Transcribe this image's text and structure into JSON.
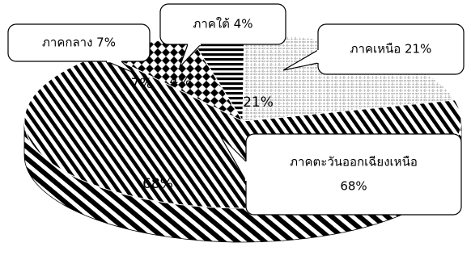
{
  "chart_data": {
    "type": "pie",
    "slices": [
      {
        "label": "ภาคตะวันออกเฉียงเหนือ",
        "value": 68,
        "display": "68%",
        "callout": [
          "ภาคตะวันออกเฉียงเหนือ",
          "68%"
        ],
        "pattern": "diagonal-stripes"
      },
      {
        "label": "ภาคกลาง",
        "value": 7,
        "display": "7%",
        "callout": [
          "ภาคกลาง 7%"
        ],
        "pattern": "diamonds"
      },
      {
        "label": "ภาคใต้",
        "value": 4,
        "display": "4%",
        "callout": [
          "ภาคใต้ 4%"
        ],
        "pattern": "horizontal-bars"
      },
      {
        "label": "ภาคเหนือ",
        "value": 21,
        "display": "21%",
        "callout": [
          "ภาคเหนือ 21%"
        ],
        "pattern": "grid"
      }
    ],
    "style": "3d",
    "legend": "callouts"
  }
}
